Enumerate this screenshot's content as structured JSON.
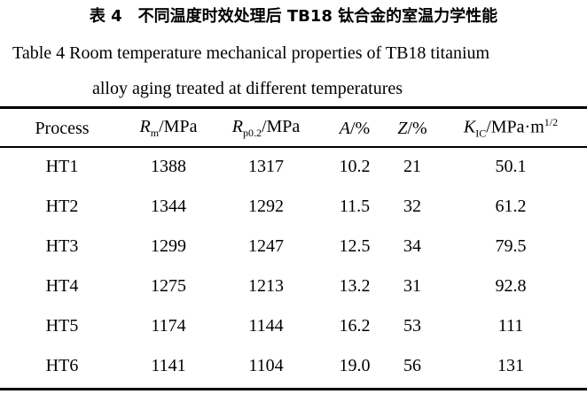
{
  "caption_cn": "表 4　不同温度时效处理后 TB18 钛合金的室温力学性能",
  "caption_en_line1": "Table 4    Room temperature mechanical properties of TB18 titanium",
  "caption_en_line2": "alloy aging treated at different temperatures",
  "headers": [
    {
      "text": "Process"
    },
    {
      "sym": "R",
      "sub": "m",
      "unit": "/MPa"
    },
    {
      "sym": "R",
      "sub": "p0.2",
      "unit": "/MPa"
    },
    {
      "sym": "A",
      "unit": "/%"
    },
    {
      "sym": "Z",
      "unit": "/%"
    },
    {
      "sym": "K",
      "sub": "IC",
      "unit": "/MPa·m",
      "sup": "1/2"
    }
  ],
  "rows": [
    [
      "HT1",
      "1388",
      "1317",
      "10.2",
      "21",
      "50.1"
    ],
    [
      "HT2",
      "1344",
      "1292",
      "11.5",
      "32",
      "61.2"
    ],
    [
      "HT3",
      "1299",
      "1247",
      "12.5",
      "34",
      "79.5"
    ],
    [
      "HT4",
      "1275",
      "1213",
      "13.2",
      "31",
      "92.8"
    ],
    [
      "HT5",
      "1174",
      "1144",
      "16.2",
      "53",
      "111"
    ],
    [
      "HT6",
      "1141",
      "1104",
      "19.0",
      "56",
      "131"
    ]
  ]
}
